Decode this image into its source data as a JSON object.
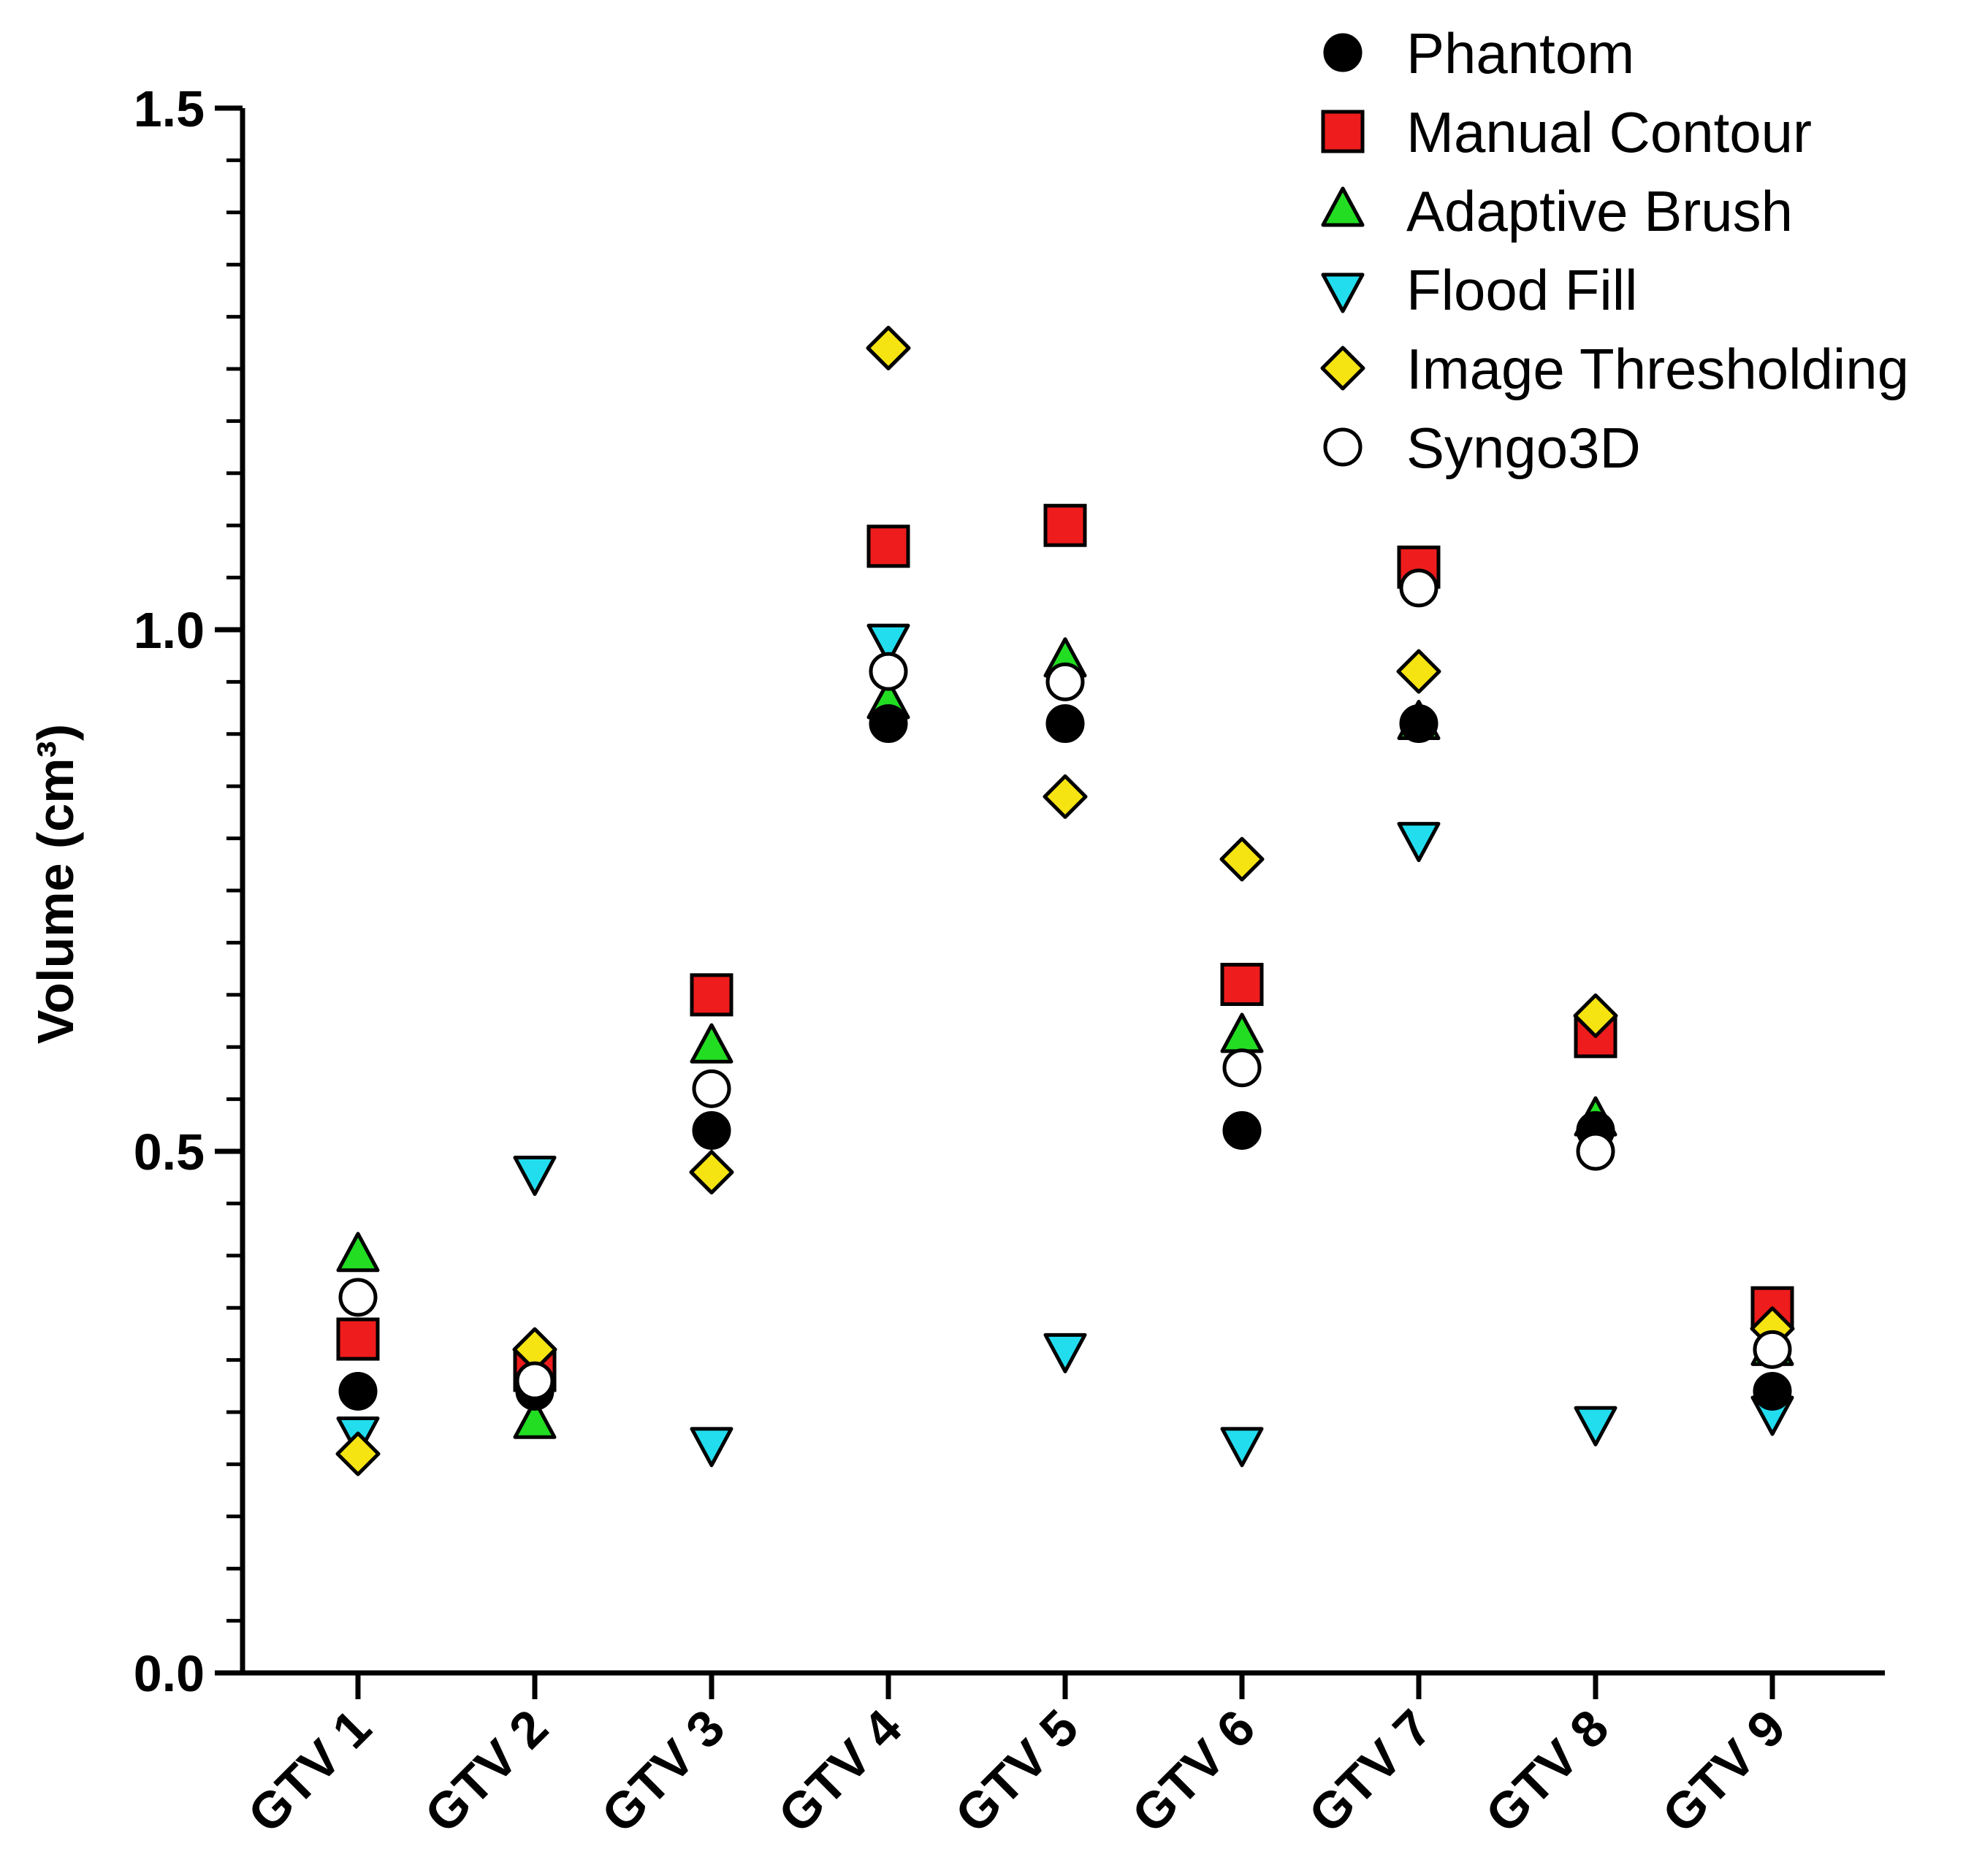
{
  "chart_data": {
    "type": "scatter",
    "ylabel": "Volume (cm³)",
    "xlabel": "",
    "ylim": [
      0,
      1.5
    ],
    "yticks": [
      "0.0",
      "0.5",
      "1.0",
      "1.5"
    ],
    "y_minor_step": 0.05,
    "grid": false,
    "legend_position": "top-right",
    "categories": [
      "GTV 1",
      "GTV 2",
      "GTV 3",
      "GTV 4",
      "GTV 5",
      "GTV 6",
      "GTV 7",
      "GTV 8",
      "GTV 9"
    ],
    "series": [
      {
        "name": "Manual Contour",
        "marker": "square",
        "fill": "#ee1c1c",
        "values": [
          0.32,
          0.29,
          0.65,
          1.08,
          1.1,
          0.66,
          1.06,
          0.61,
          0.35
        ]
      },
      {
        "name": "Adaptive Brush",
        "marker": "triangle-up",
        "fill": "#22dd22",
        "values": [
          0.4,
          0.24,
          0.6,
          0.93,
          0.97,
          0.61,
          0.91,
          0.53,
          0.31
        ]
      },
      {
        "name": "Flood Fill",
        "marker": "triangle-down",
        "fill": "#22ddee",
        "values": [
          0.23,
          0.48,
          0.22,
          0.99,
          0.31,
          0.22,
          0.8,
          0.24,
          0.25
        ]
      },
      {
        "name": "Image Thresholding",
        "marker": "diamond",
        "fill": "#f5e312",
        "values": [
          0.21,
          0.31,
          0.48,
          1.27,
          0.84,
          0.78,
          0.96,
          0.63,
          0.33
        ]
      },
      {
        "name": "Phantom",
        "marker": "circle",
        "fill": "#000000",
        "values": [
          0.27,
          0.27,
          0.52,
          0.91,
          0.91,
          0.52,
          0.91,
          0.52,
          0.27
        ]
      },
      {
        "name": "Syngo3D",
        "marker": "circle",
        "fill": "#ffffff",
        "values": [
          0.36,
          0.28,
          0.56,
          0.96,
          0.95,
          0.58,
          1.04,
          0.5,
          0.31
        ]
      }
    ],
    "legend_order": [
      "Phantom",
      "Manual Contour",
      "Adaptive Brush",
      "Flood Fill",
      "Image Thresholding",
      "Syngo3D"
    ]
  }
}
